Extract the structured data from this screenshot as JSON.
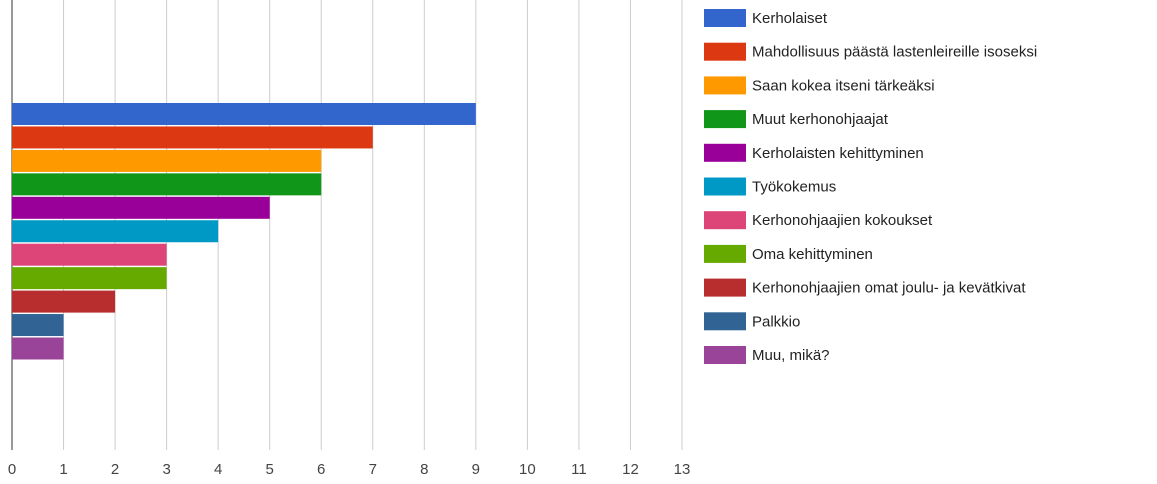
{
  "chart_data": {
    "type": "bar",
    "orientation": "horizontal",
    "categories": [
      null
    ],
    "series": [
      {
        "name": "Kerholaiset",
        "color": "#3366cc",
        "values": [
          9
        ]
      },
      {
        "name": "Mahdollisuus päästä lastenleireille isoseksi",
        "color": "#dc3912",
        "values": [
          7
        ]
      },
      {
        "name": "Saan kokea itseni tärkeäksi",
        "color": "#ff9900",
        "values": [
          6
        ]
      },
      {
        "name": "Muut kerhonohjaajat",
        "color": "#109618",
        "values": [
          6
        ]
      },
      {
        "name": "Kerholaisten kehittyminen",
        "color": "#990099",
        "values": [
          5
        ]
      },
      {
        "name": "Työkokemus",
        "color": "#0099c6",
        "values": [
          4
        ]
      },
      {
        "name": "Kerhonohjaajien kokoukset",
        "color": "#dd4477",
        "values": [
          3
        ]
      },
      {
        "name": "Oma kehittyminen",
        "color": "#66aa00",
        "values": [
          3
        ]
      },
      {
        "name": "Kerhonohjaajien omat joulu- ja kevätkivat",
        "color": "#b82e2e",
        "values": [
          2
        ]
      },
      {
        "name": "Palkkio",
        "color": "#316395",
        "values": [
          1
        ]
      },
      {
        "name": "Muu, mikä?",
        "color": "#994499",
        "values": [
          1
        ]
      }
    ],
    "xlim": [
      0,
      13
    ],
    "xticks": [
      0,
      1,
      2,
      3,
      4,
      5,
      6,
      7,
      8,
      9,
      10,
      11,
      12,
      13
    ],
    "grid": true,
    "legend": "right"
  }
}
